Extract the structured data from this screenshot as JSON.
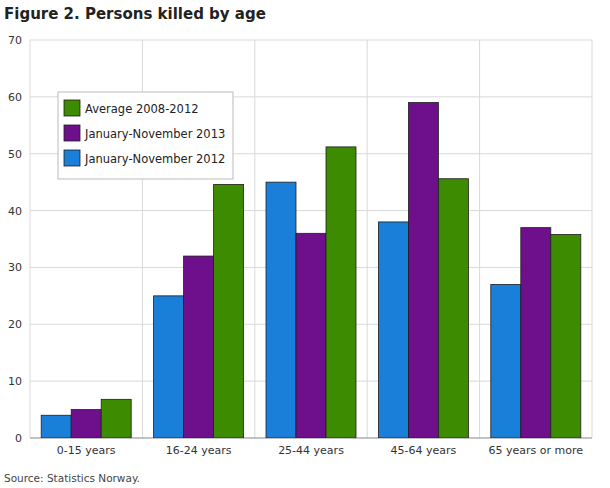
{
  "chart_data": {
    "type": "bar",
    "title": "Figure 2. Persons killed by age",
    "source": "Source: Statistics Norway.",
    "categories": [
      "0-15 years",
      "16-24 years",
      "25-44 years",
      "45-64 years",
      "65 years or more"
    ],
    "series": [
      {
        "name": "January-November 2012",
        "color": "#1a7fd9",
        "values": [
          4,
          25,
          45,
          38,
          27
        ]
      },
      {
        "name": "January-November 2013",
        "color": "#6e0f8c",
        "values": [
          5,
          32,
          36,
          59,
          37
        ]
      },
      {
        "name": "Average 2008-2012",
        "color": "#3d8b00",
        "values": [
          6.8,
          44.6,
          51.2,
          45.6,
          35.8
        ]
      }
    ],
    "ylim": [
      0,
      70
    ],
    "yticks": [
      0,
      10,
      20,
      30,
      40,
      50,
      60,
      70
    ],
    "grid": true,
    "legend": "upper left"
  }
}
